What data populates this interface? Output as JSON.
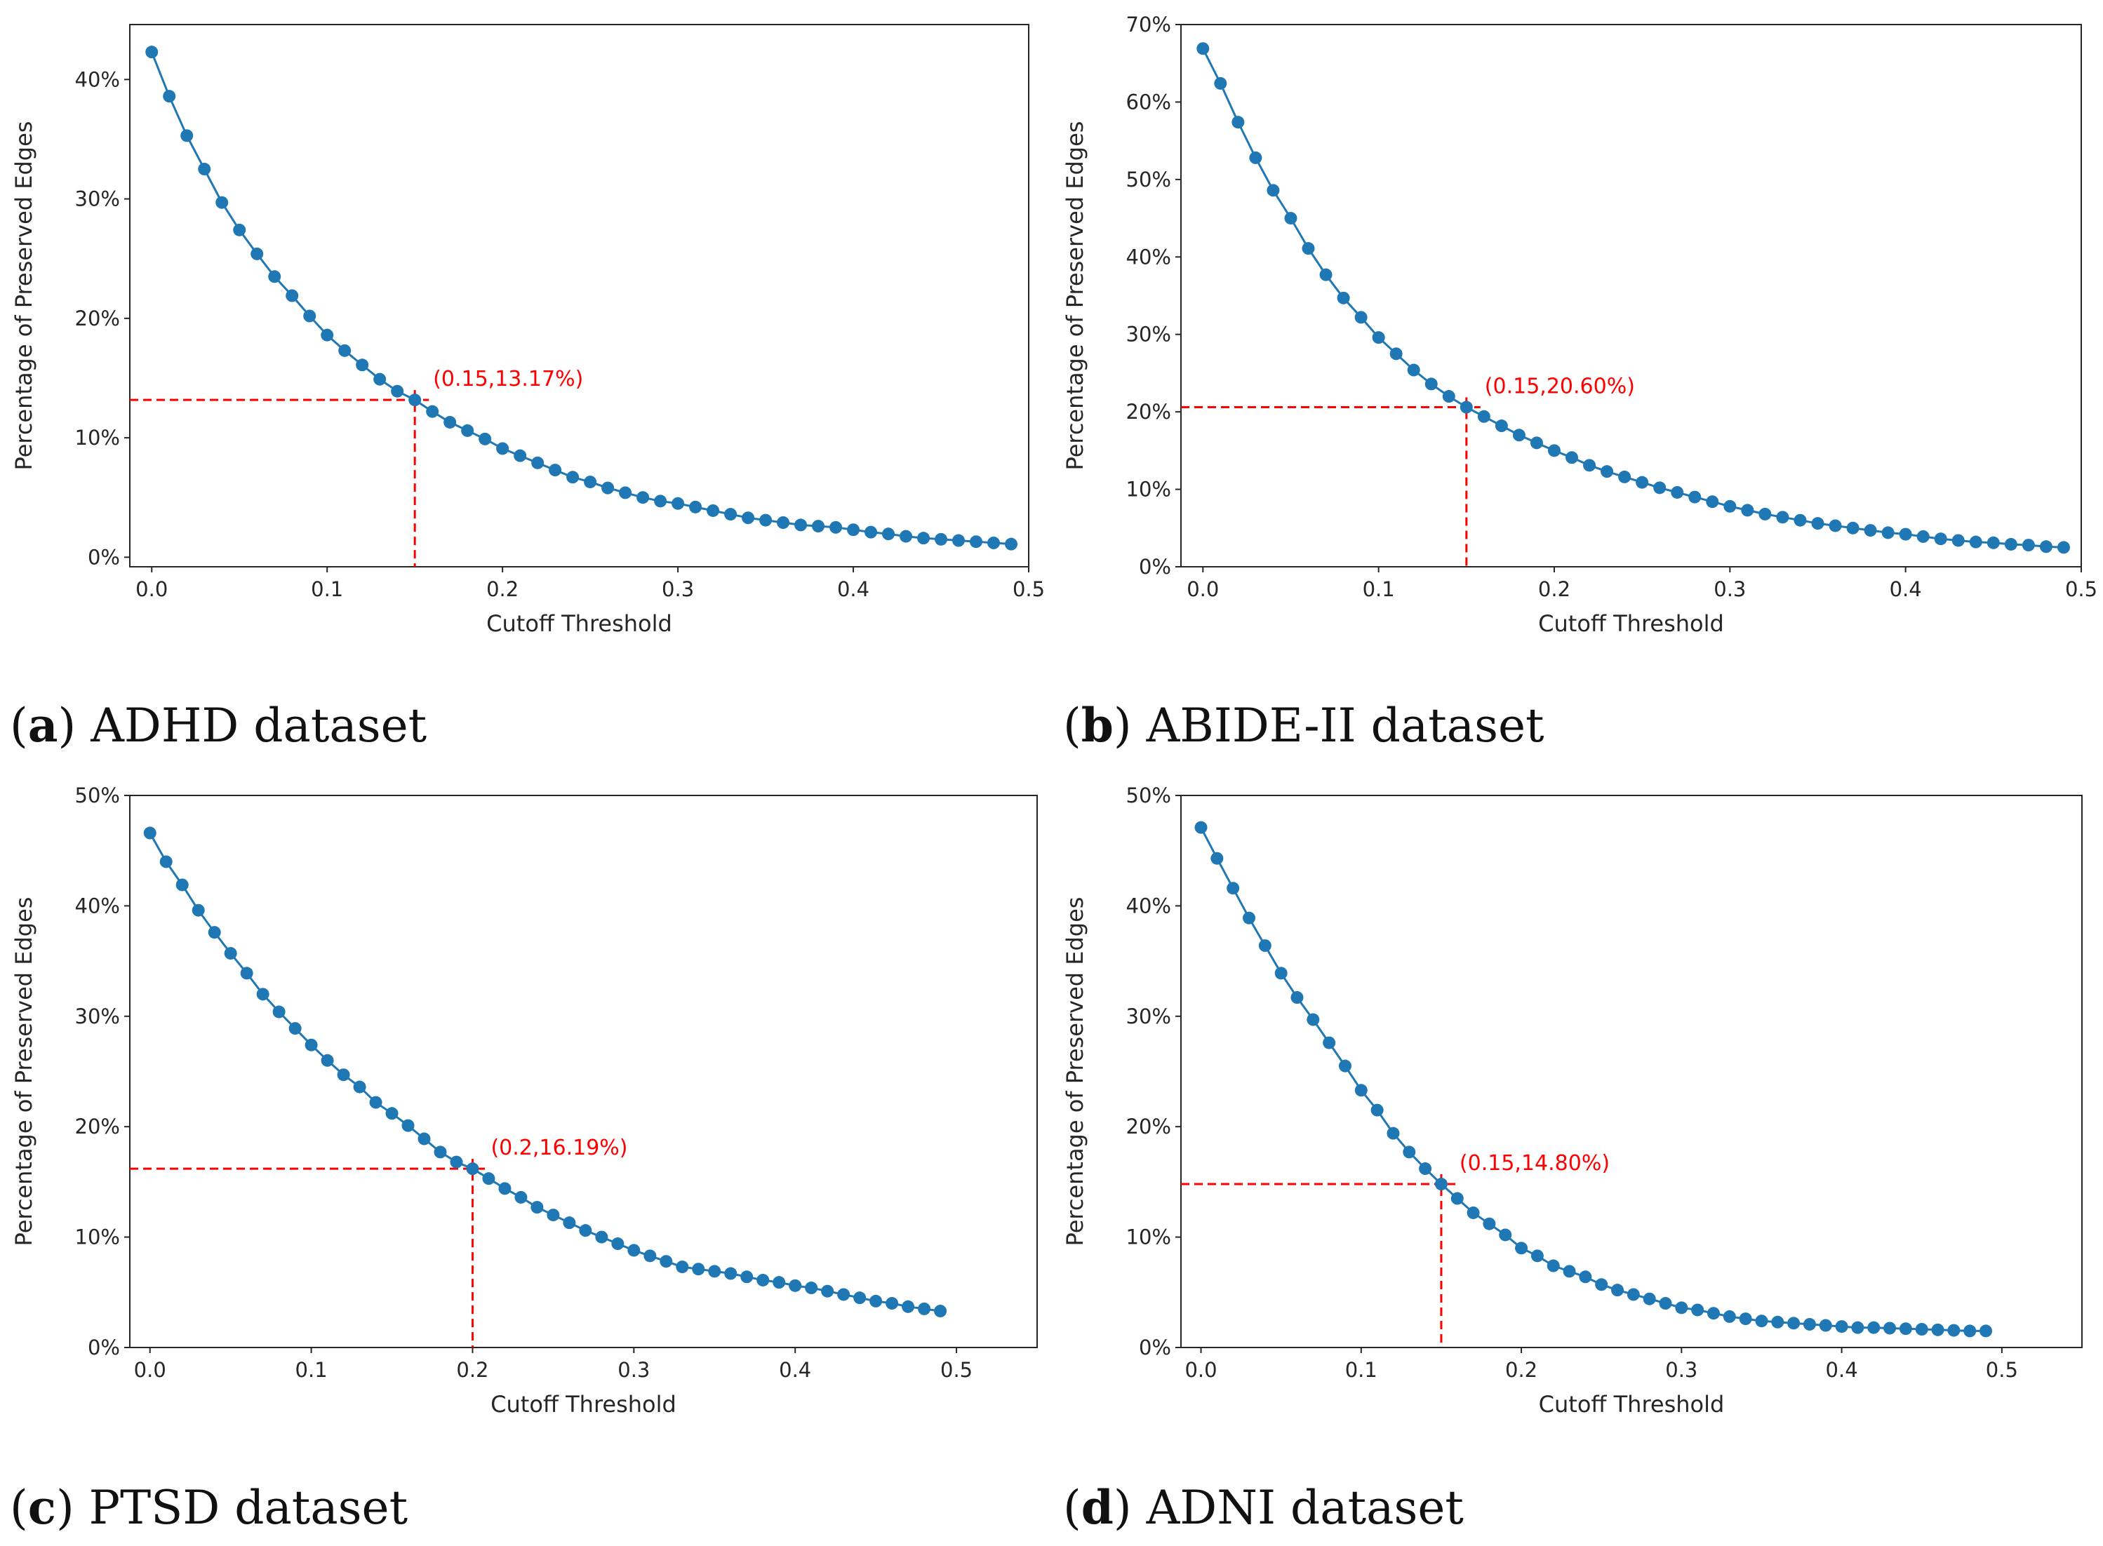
{
  "figure": {
    "captions": [
      {
        "letter": "a",
        "text": "ADHD dataset"
      },
      {
        "letter": "b",
        "text": "ABIDE-II dataset"
      },
      {
        "letter": "c",
        "text": "PTSD dataset"
      },
      {
        "letter": "d",
        "text": "ADNI dataset"
      }
    ]
  },
  "colors": {
    "series": "#1f77b4",
    "annotation": "#ff0000",
    "axis": "#262626"
  },
  "chart_data": [
    {
      "type": "line",
      "panel": "a",
      "title": "",
      "xlabel": "Cutoff Threshold",
      "ylabel": "Percentage of Preserved Edges",
      "xlim": [
        -0.0125,
        0.5
      ],
      "ylim": [
        -0.8,
        44.6
      ],
      "xticks": [
        0.0,
        0.1,
        0.2,
        0.3,
        0.4,
        0.5
      ],
      "xtick_labels": [
        "0.0",
        "0.1",
        "0.2",
        "0.3",
        "0.4",
        "0.5"
      ],
      "yticks": [
        0,
        10,
        20,
        30,
        40
      ],
      "ytick_labels": [
        "0%",
        "10%",
        "20%",
        "30%",
        "40%"
      ],
      "grid": false,
      "x": [
        0.0,
        0.01,
        0.02,
        0.03,
        0.04,
        0.05,
        0.06,
        0.07,
        0.08,
        0.09,
        0.1,
        0.11,
        0.12,
        0.13,
        0.14,
        0.15,
        0.16,
        0.17,
        0.18,
        0.19,
        0.2,
        0.21,
        0.22,
        0.23,
        0.24,
        0.25,
        0.26,
        0.27,
        0.28,
        0.29,
        0.3,
        0.31,
        0.32,
        0.33,
        0.34,
        0.35,
        0.36,
        0.37,
        0.38,
        0.39,
        0.4,
        0.41,
        0.42,
        0.43,
        0.44,
        0.45,
        0.46,
        0.47,
        0.48,
        0.49
      ],
      "series": [
        {
          "name": "Preserved edges",
          "values": [
            42.3,
            38.6,
            35.3,
            32.5,
            29.7,
            27.4,
            25.4,
            23.5,
            21.9,
            20.2,
            18.6,
            17.3,
            16.1,
            14.9,
            13.9,
            13.17,
            12.2,
            11.3,
            10.6,
            9.9,
            9.1,
            8.5,
            7.9,
            7.3,
            6.7,
            6.3,
            5.8,
            5.4,
            5.0,
            4.7,
            4.5,
            4.2,
            3.9,
            3.6,
            3.3,
            3.1,
            2.9,
            2.7,
            2.6,
            2.5,
            2.3,
            2.1,
            1.95,
            1.75,
            1.6,
            1.5,
            1.4,
            1.3,
            1.2,
            1.1
          ]
        }
      ],
      "annotation": {
        "x": 0.15,
        "y": 13.17,
        "label": "(0.15,13.17%)"
      }
    },
    {
      "type": "line",
      "panel": "b",
      "title": "",
      "xlabel": "Cutoff Threshold",
      "ylabel": "Percentage of Preserved Edges",
      "xlim": [
        -0.0125,
        0.5
      ],
      "ylim": [
        0,
        70
      ],
      "xticks": [
        0.0,
        0.1,
        0.2,
        0.3,
        0.4,
        0.5
      ],
      "xtick_labels": [
        "0.0",
        "0.1",
        "0.2",
        "0.3",
        "0.4",
        "0.5"
      ],
      "yticks": [
        0,
        10,
        20,
        30,
        40,
        50,
        60,
        70
      ],
      "ytick_labels": [
        "0%",
        "10%",
        "20%",
        "30%",
        "40%",
        "50%",
        "60%",
        "70%"
      ],
      "grid": false,
      "x": [
        0.0,
        0.01,
        0.02,
        0.03,
        0.04,
        0.05,
        0.06,
        0.07,
        0.08,
        0.09,
        0.1,
        0.11,
        0.12,
        0.13,
        0.14,
        0.15,
        0.16,
        0.17,
        0.18,
        0.19,
        0.2,
        0.21,
        0.22,
        0.23,
        0.24,
        0.25,
        0.26,
        0.27,
        0.28,
        0.29,
        0.3,
        0.31,
        0.32,
        0.33,
        0.34,
        0.35,
        0.36,
        0.37,
        0.38,
        0.39,
        0.4,
        0.41,
        0.42,
        0.43,
        0.44,
        0.45,
        0.46,
        0.47,
        0.48,
        0.49
      ],
      "series": [
        {
          "name": "Preserved edges",
          "values": [
            66.9,
            62.4,
            57.4,
            52.8,
            48.6,
            45.0,
            41.1,
            37.7,
            34.7,
            32.2,
            29.6,
            27.5,
            25.4,
            23.6,
            22.0,
            20.6,
            19.4,
            18.2,
            17.0,
            16.0,
            15.0,
            14.1,
            13.1,
            12.3,
            11.6,
            10.9,
            10.2,
            9.6,
            9.0,
            8.4,
            7.8,
            7.3,
            6.8,
            6.4,
            6.0,
            5.6,
            5.3,
            5.0,
            4.7,
            4.4,
            4.2,
            3.9,
            3.6,
            3.4,
            3.2,
            3.1,
            2.9,
            2.8,
            2.6,
            2.5
          ]
        }
      ],
      "annotation": {
        "x": 0.15,
        "y": 20.6,
        "label": "(0.15,20.60%)"
      }
    },
    {
      "type": "line",
      "panel": "c",
      "title": "",
      "xlabel": "Cutoff Threshold",
      "ylabel": "Percentage of Preserved Edges",
      "xlim": [
        -0.0125,
        0.55
      ],
      "ylim": [
        0,
        50
      ],
      "xticks": [
        0.0,
        0.1,
        0.2,
        0.3,
        0.4,
        0.5
      ],
      "xtick_labels": [
        "0.0",
        "0.1",
        "0.2",
        "0.3",
        "0.4",
        "0.5"
      ],
      "yticks": [
        0,
        10,
        20,
        30,
        40,
        50
      ],
      "ytick_labels": [
        "0%",
        "10%",
        "20%",
        "30%",
        "40%",
        "50%"
      ],
      "grid": false,
      "x": [
        0.0,
        0.01,
        0.02,
        0.03,
        0.04,
        0.05,
        0.06,
        0.07,
        0.08,
        0.09,
        0.1,
        0.11,
        0.12,
        0.13,
        0.14,
        0.15,
        0.16,
        0.17,
        0.18,
        0.19,
        0.2,
        0.21,
        0.22,
        0.23,
        0.24,
        0.25,
        0.26,
        0.27,
        0.28,
        0.29,
        0.3,
        0.31,
        0.32,
        0.33,
        0.34,
        0.35,
        0.36,
        0.37,
        0.38,
        0.39,
        0.4,
        0.41,
        0.42,
        0.43,
        0.44,
        0.45,
        0.46,
        0.47,
        0.48,
        0.49
      ],
      "series": [
        {
          "name": "Preserved edges",
          "values": [
            46.6,
            44.0,
            41.9,
            39.6,
            37.6,
            35.7,
            33.9,
            32.0,
            30.4,
            28.9,
            27.4,
            26.0,
            24.7,
            23.6,
            22.2,
            21.2,
            20.1,
            18.9,
            17.7,
            16.8,
            16.19,
            15.3,
            14.4,
            13.6,
            12.7,
            12.0,
            11.3,
            10.6,
            10.0,
            9.4,
            8.8,
            8.3,
            7.8,
            7.3,
            7.1,
            6.9,
            6.7,
            6.4,
            6.1,
            5.9,
            5.6,
            5.4,
            5.1,
            4.8,
            4.5,
            4.2,
            4.0,
            3.7,
            3.5,
            3.3
          ]
        }
      ],
      "annotation": {
        "x": 0.2,
        "y": 16.19,
        "label": "(0.2,16.19%)"
      }
    },
    {
      "type": "line",
      "panel": "d",
      "title": "",
      "xlabel": "Cutoff Threshold",
      "ylabel": "Percentage of Preserved Edges",
      "xlim": [
        -0.0125,
        0.55
      ],
      "ylim": [
        0,
        50
      ],
      "xticks": [
        0.0,
        0.1,
        0.2,
        0.3,
        0.4,
        0.5
      ],
      "xtick_labels": [
        "0.0",
        "0.1",
        "0.2",
        "0.3",
        "0.4",
        "0.5"
      ],
      "yticks": [
        0,
        10,
        20,
        30,
        40,
        50
      ],
      "ytick_labels": [
        "0%",
        "10%",
        "20%",
        "30%",
        "40%",
        "50%"
      ],
      "grid": false,
      "x": [
        0.0,
        0.01,
        0.02,
        0.03,
        0.04,
        0.05,
        0.06,
        0.07,
        0.08,
        0.09,
        0.1,
        0.11,
        0.12,
        0.13,
        0.14,
        0.15,
        0.16,
        0.17,
        0.18,
        0.19,
        0.2,
        0.21,
        0.22,
        0.23,
        0.24,
        0.25,
        0.26,
        0.27,
        0.28,
        0.29,
        0.3,
        0.31,
        0.32,
        0.33,
        0.34,
        0.35,
        0.36,
        0.37,
        0.38,
        0.39,
        0.4,
        0.41,
        0.42,
        0.43,
        0.44,
        0.45,
        0.46,
        0.47,
        0.48,
        0.49
      ],
      "series": [
        {
          "name": "Preserved edges",
          "values": [
            47.1,
            44.3,
            41.6,
            38.9,
            36.4,
            33.9,
            31.7,
            29.7,
            27.6,
            25.5,
            23.3,
            21.5,
            19.4,
            17.7,
            16.2,
            14.8,
            13.5,
            12.2,
            11.2,
            10.2,
            9.0,
            8.3,
            7.4,
            6.9,
            6.4,
            5.7,
            5.2,
            4.8,
            4.4,
            4.0,
            3.6,
            3.4,
            3.1,
            2.8,
            2.6,
            2.4,
            2.3,
            2.2,
            2.1,
            2.0,
            1.9,
            1.8,
            1.8,
            1.75,
            1.7,
            1.65,
            1.6,
            1.55,
            1.5,
            1.5
          ]
        }
      ],
      "annotation": {
        "x": 0.15,
        "y": 14.8,
        "label": "(0.15,14.80%)"
      }
    }
  ]
}
